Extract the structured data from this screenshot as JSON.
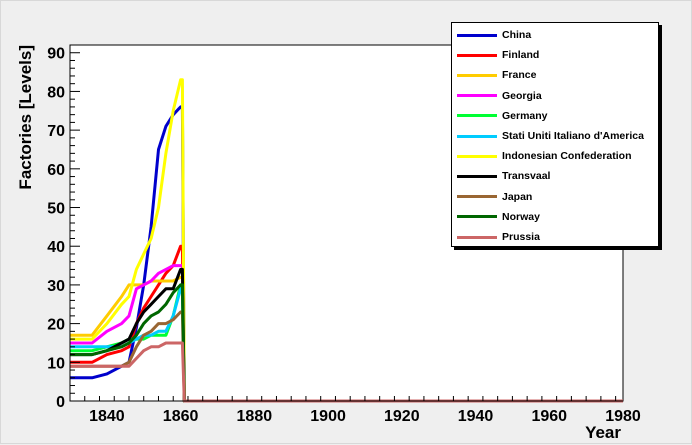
{
  "chart_data": {
    "type": "line",
    "title": "",
    "xlabel": "Year",
    "ylabel": "Factories [Levels]",
    "xlim": [
      1830,
      1980
    ],
    "ylim": [
      0,
      92
    ],
    "x_ticks": [
      1840,
      1860,
      1880,
      1900,
      1920,
      1940,
      1960,
      1980
    ],
    "y_ticks": [
      0,
      10,
      20,
      30,
      40,
      50,
      60,
      70,
      80,
      90
    ],
    "grid": false,
    "legend_position": "top-right",
    "series": [
      {
        "name": "China",
        "color": "#0000cc",
        "points": [
          [
            1830,
            6
          ],
          [
            1836,
            6
          ],
          [
            1840,
            7
          ],
          [
            1844,
            9
          ],
          [
            1846,
            10
          ],
          [
            1848,
            19
          ],
          [
            1850,
            30
          ],
          [
            1852,
            45
          ],
          [
            1854,
            65
          ],
          [
            1856,
            71
          ],
          [
            1858,
            74
          ],
          [
            1860,
            76
          ],
          [
            1860.5,
            76
          ],
          [
            1861,
            0
          ],
          [
            1980,
            0
          ]
        ]
      },
      {
        "name": "Finland",
        "color": "#ff0000",
        "points": [
          [
            1830,
            10
          ],
          [
            1836,
            10
          ],
          [
            1840,
            12
          ],
          [
            1844,
            13
          ],
          [
            1846,
            14
          ],
          [
            1848,
            20
          ],
          [
            1850,
            24
          ],
          [
            1852,
            27
          ],
          [
            1854,
            30
          ],
          [
            1856,
            33
          ],
          [
            1858,
            35
          ],
          [
            1860,
            40
          ],
          [
            1860.5,
            40
          ],
          [
            1861,
            0
          ],
          [
            1980,
            0
          ]
        ]
      },
      {
        "name": "France",
        "color": "#ffcc00",
        "points": [
          [
            1830,
            17
          ],
          [
            1836,
            17
          ],
          [
            1840,
            22
          ],
          [
            1844,
            27
          ],
          [
            1846,
            30
          ],
          [
            1848,
            30
          ],
          [
            1850,
            30
          ],
          [
            1852,
            31
          ],
          [
            1854,
            31
          ],
          [
            1856,
            31
          ],
          [
            1858,
            31
          ],
          [
            1860,
            32
          ],
          [
            1860.5,
            32
          ],
          [
            1861,
            0
          ],
          [
            1980,
            0
          ]
        ]
      },
      {
        "name": "Georgia",
        "color": "#ff00ff",
        "points": [
          [
            1830,
            15
          ],
          [
            1836,
            15
          ],
          [
            1840,
            18
          ],
          [
            1844,
            20
          ],
          [
            1846,
            22
          ],
          [
            1848,
            29
          ],
          [
            1850,
            30
          ],
          [
            1852,
            31
          ],
          [
            1854,
            33
          ],
          [
            1856,
            34
          ],
          [
            1858,
            35
          ],
          [
            1860,
            35
          ],
          [
            1860.5,
            35
          ],
          [
            1861,
            0
          ],
          [
            1980,
            0
          ]
        ]
      },
      {
        "name": "Germany",
        "color": "#00ff33",
        "points": [
          [
            1830,
            13
          ],
          [
            1836,
            13
          ],
          [
            1840,
            14
          ],
          [
            1844,
            15
          ],
          [
            1846,
            16
          ],
          [
            1848,
            16
          ],
          [
            1850,
            16
          ],
          [
            1852,
            17
          ],
          [
            1854,
            17
          ],
          [
            1856,
            17
          ],
          [
            1858,
            22
          ],
          [
            1860,
            30
          ],
          [
            1860.5,
            30
          ],
          [
            1861,
            0
          ],
          [
            1980,
            0
          ]
        ]
      },
      {
        "name": "Stati Uniti Italiano d'America",
        "color": "#00ccff",
        "points": [
          [
            1830,
            14
          ],
          [
            1836,
            14
          ],
          [
            1840,
            14
          ],
          [
            1844,
            14
          ],
          [
            1846,
            15
          ],
          [
            1848,
            16
          ],
          [
            1850,
            17
          ],
          [
            1852,
            17
          ],
          [
            1854,
            18
          ],
          [
            1856,
            18
          ],
          [
            1858,
            22
          ],
          [
            1860,
            29
          ],
          [
            1860.5,
            29
          ],
          [
            1861,
            0
          ],
          [
            1980,
            0
          ]
        ]
      },
      {
        "name": "Indonesian Confederation",
        "color": "#ffff00",
        "points": [
          [
            1830,
            16
          ],
          [
            1836,
            16
          ],
          [
            1840,
            20
          ],
          [
            1844,
            25
          ],
          [
            1846,
            27
          ],
          [
            1848,
            34
          ],
          [
            1850,
            38
          ],
          [
            1852,
            42
          ],
          [
            1854,
            50
          ],
          [
            1856,
            64
          ],
          [
            1858,
            75
          ],
          [
            1860,
            83
          ],
          [
            1860.5,
            83
          ],
          [
            1861,
            0
          ],
          [
            1980,
            0
          ]
        ]
      },
      {
        "name": "Transvaal",
        "color": "#000000",
        "points": [
          [
            1830,
            12
          ],
          [
            1836,
            12
          ],
          [
            1840,
            13
          ],
          [
            1844,
            15
          ],
          [
            1846,
            16
          ],
          [
            1848,
            20
          ],
          [
            1850,
            23
          ],
          [
            1852,
            25
          ],
          [
            1854,
            27
          ],
          [
            1856,
            29
          ],
          [
            1858,
            29
          ],
          [
            1860,
            34
          ],
          [
            1860.5,
            34
          ],
          [
            1861,
            0
          ],
          [
            1980,
            0
          ]
        ]
      },
      {
        "name": "Japan",
        "color": "#996633",
        "points": [
          [
            1830,
            9
          ],
          [
            1836,
            9
          ],
          [
            1840,
            9
          ],
          [
            1844,
            9
          ],
          [
            1846,
            10
          ],
          [
            1848,
            14
          ],
          [
            1850,
            17
          ],
          [
            1852,
            18
          ],
          [
            1854,
            20
          ],
          [
            1856,
            20
          ],
          [
            1858,
            21
          ],
          [
            1860,
            23
          ],
          [
            1860.5,
            23
          ],
          [
            1861,
            0
          ],
          [
            1980,
            0
          ]
        ]
      },
      {
        "name": "Norway",
        "color": "#006600",
        "points": [
          [
            1830,
            12
          ],
          [
            1836,
            12
          ],
          [
            1840,
            13
          ],
          [
            1844,
            14
          ],
          [
            1846,
            15
          ],
          [
            1848,
            17
          ],
          [
            1850,
            20
          ],
          [
            1852,
            22
          ],
          [
            1854,
            23
          ],
          [
            1856,
            25
          ],
          [
            1858,
            28
          ],
          [
            1860,
            30
          ],
          [
            1860.5,
            30
          ],
          [
            1861,
            0
          ],
          [
            1980,
            0
          ]
        ]
      },
      {
        "name": "Prussia",
        "color": "#cc6666",
        "points": [
          [
            1830,
            9
          ],
          [
            1836,
            9
          ],
          [
            1840,
            9
          ],
          [
            1844,
            9
          ],
          [
            1846,
            9
          ],
          [
            1848,
            11
          ],
          [
            1850,
            13
          ],
          [
            1852,
            14
          ],
          [
            1854,
            14
          ],
          [
            1856,
            15
          ],
          [
            1858,
            15
          ],
          [
            1860,
            15
          ],
          [
            1860.5,
            15
          ],
          [
            1861,
            0
          ],
          [
            1980,
            0
          ]
        ]
      }
    ]
  }
}
